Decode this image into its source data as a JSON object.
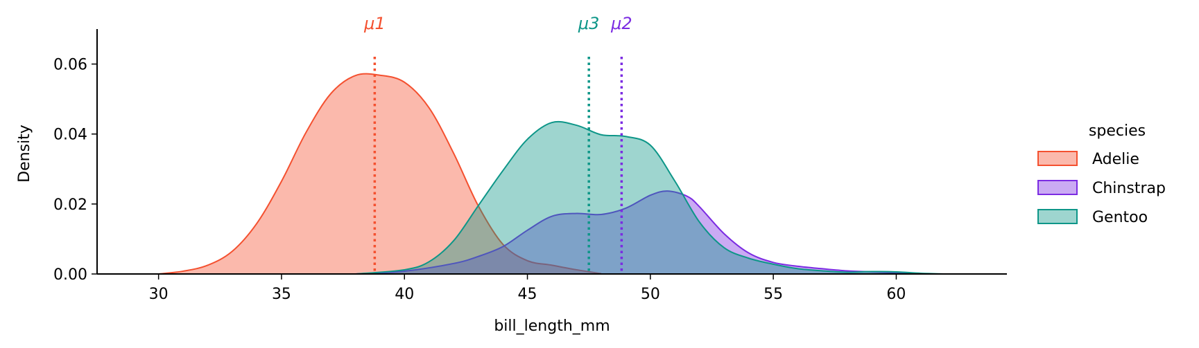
{
  "chart_data": {
    "type": "area",
    "subtype": "kde",
    "xlabel": "bill_length_mm",
    "ylabel": "Density",
    "xlim": [
      27.5,
      64.5
    ],
    "ylim": [
      0,
      0.07
    ],
    "xticks": [
      30,
      35,
      40,
      45,
      50,
      55,
      60
    ],
    "yticks": [
      0.0,
      0.02,
      0.04,
      0.06
    ],
    "ytick_labels": [
      "0.00",
      "0.02",
      "0.04",
      "0.06"
    ],
    "grid": false,
    "legend": {
      "title": "species",
      "placement": "right"
    },
    "series": [
      {
        "name": "Adelie",
        "color": "#f4502f",
        "fill": "#f4502f",
        "x": [
          30,
          31,
          32,
          33,
          34,
          35,
          36,
          37,
          38,
          39,
          40,
          41,
          42,
          43,
          44,
          45,
          46,
          47,
          48
        ],
        "y": [
          0.0,
          0.0008,
          0.0025,
          0.0065,
          0.0145,
          0.0265,
          0.0405,
          0.0515,
          0.0567,
          0.0568,
          0.0548,
          0.0475,
          0.0345,
          0.0195,
          0.0085,
          0.0038,
          0.0025,
          0.0012,
          0.0001
        ]
      },
      {
        "name": "Chinstrap",
        "color": "#7b2be2",
        "fill": "#7b2be2",
        "x": [
          38,
          40,
          42,
          43,
          44,
          45,
          46,
          47,
          48,
          49,
          50,
          50.7,
          51.5,
          52,
          53,
          54,
          55,
          56,
          57,
          58,
          59,
          60,
          61
        ],
        "y": [
          0.0,
          0.0008,
          0.003,
          0.005,
          0.0078,
          0.0125,
          0.0165,
          0.0173,
          0.017,
          0.0188,
          0.0225,
          0.0237,
          0.0222,
          0.0192,
          0.0115,
          0.006,
          0.0033,
          0.0022,
          0.0015,
          0.0009,
          0.0006,
          0.0003,
          0.0
        ]
      },
      {
        "name": "Gentoo",
        "color": "#0d9688",
        "fill": "#0d9688",
        "x": [
          38,
          40,
          41,
          42,
          43,
          44,
          45,
          46,
          47,
          48,
          49,
          50,
          51,
          52,
          53,
          54,
          55,
          56,
          57,
          58,
          59,
          60,
          61,
          62
        ],
        "y": [
          0.0,
          0.0012,
          0.0035,
          0.0095,
          0.0195,
          0.0295,
          0.0385,
          0.0433,
          0.0425,
          0.0398,
          0.0393,
          0.0368,
          0.0265,
          0.0148,
          0.0075,
          0.0045,
          0.0028,
          0.0015,
          0.0009,
          0.0005,
          0.0007,
          0.0006,
          0.0002,
          0.0
        ]
      }
    ],
    "mean_lines": [
      {
        "label": "μ1",
        "x": 38.79,
        "color": "#f4502f"
      },
      {
        "label": "μ2",
        "x": 48.83,
        "color": "#7b2be2"
      },
      {
        "label": "μ3",
        "x": 47.5,
        "color": "#0d9688"
      }
    ],
    "fill_opacity": 0.4
  }
}
